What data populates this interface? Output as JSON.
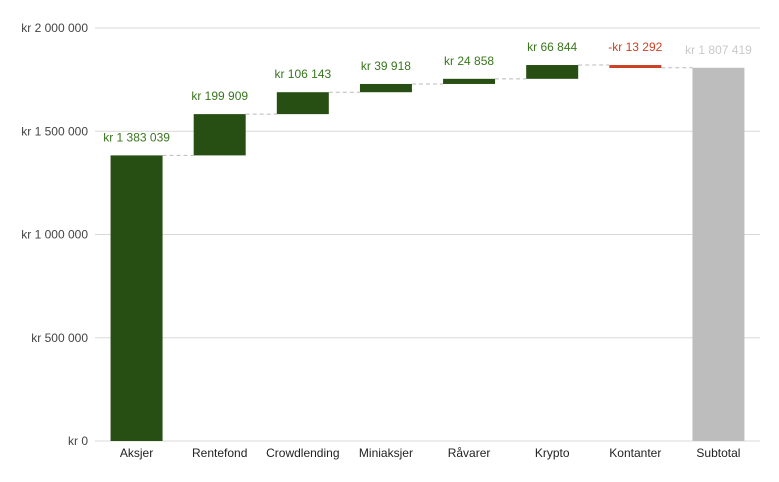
{
  "chart_data": {
    "type": "bar",
    "subtype": "waterfall",
    "title": "",
    "xlabel": "",
    "ylabel": "",
    "ylim": [
      0,
      2000000
    ],
    "yticks": [
      0,
      500000,
      1000000,
      1500000,
      2000000
    ],
    "ytick_labels": [
      "kr   0",
      "kr  500 000",
      "kr 1 000 000",
      "kr 1 500 000",
      "kr 2 000 000"
    ],
    "grid": true,
    "legend": "none",
    "categories": [
      "Aksjer",
      "Rentefond",
      "Crowdlending",
      "Miniaksjer",
      "Råvarer",
      "Krypto",
      "Kontanter",
      "Subtotal"
    ],
    "values": [
      1383039,
      199909,
      106143,
      39918,
      24858,
      66844,
      -13292,
      1807419
    ],
    "is_total": [
      false,
      false,
      false,
      false,
      false,
      false,
      false,
      true
    ],
    "labels": [
      "kr 1 383 039",
      "kr  199 909",
      "kr  106 143",
      "kr  39 918",
      "kr  24 858",
      "kr  66 844",
      "-kr  13 292",
      "kr 1 807 419"
    ],
    "colors": {
      "increase": "#274e13",
      "decrease": "#cc4125",
      "total": "#bdbdbd",
      "increase_label": "#38761d",
      "decrease_label": "#cc4125",
      "total_label": "#c9c9c9"
    }
  }
}
